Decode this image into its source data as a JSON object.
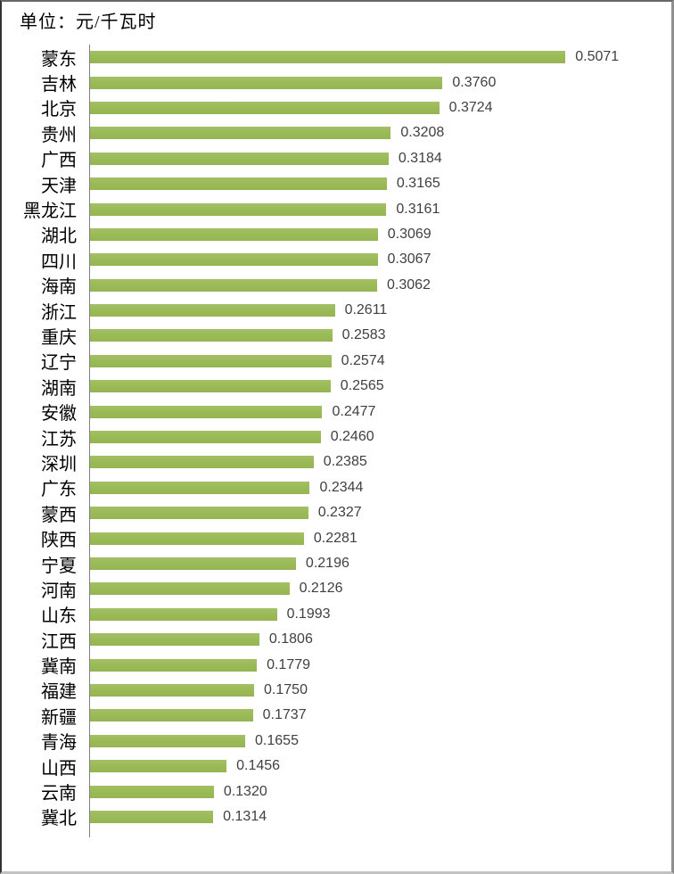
{
  "title": "单位：元/千瓦时",
  "chart_data": {
    "type": "bar",
    "orientation": "horizontal",
    "title": "单位：元/千瓦时",
    "categories": [
      "蒙东",
      "吉林",
      "北京",
      "贵州",
      "广西",
      "天津",
      "黑龙江",
      "湖北",
      "四川",
      "海南",
      "浙江",
      "重庆",
      "辽宁",
      "湖南",
      "安徽",
      "江苏",
      "深圳",
      "广东",
      "蒙西",
      "陕西",
      "宁夏",
      "河南",
      "山东",
      "江西",
      "冀南",
      "福建",
      "新疆",
      "青海",
      "山西",
      "云南",
      "冀北"
    ],
    "values": [
      0.5071,
      0.376,
      0.3724,
      0.3208,
      0.3184,
      0.3165,
      0.3161,
      0.3069,
      0.3067,
      0.3062,
      0.2611,
      0.2583,
      0.2574,
      0.2565,
      0.2477,
      0.246,
      0.2385,
      0.2344,
      0.2327,
      0.2281,
      0.2196,
      0.2126,
      0.1993,
      0.1806,
      0.1779,
      0.175,
      0.1737,
      0.1655,
      0.1456,
      0.132,
      0.1314
    ],
    "value_labels": [
      "0.5071",
      "0.3760",
      "0.3724",
      "0.3208",
      "0.3184",
      "0.3165",
      "0.3161",
      "0.3069",
      "0.3067",
      "0.3062",
      "0.2611",
      "0.2583",
      "0.2574",
      "0.2565",
      "0.2477",
      "0.2460",
      "0.2385",
      "0.2344",
      "0.2327",
      "0.2281",
      "0.2196",
      "0.2126",
      "0.1993",
      "0.1806",
      "0.1779",
      "0.1750",
      "0.1737",
      "0.1655",
      "0.1456",
      "0.1320",
      "0.1314"
    ],
    "xlabel": "",
    "ylabel": "",
    "xlim": [
      0,
      0.62
    ],
    "grid": false,
    "legend": false,
    "bar_color": "#9BBB59",
    "axis_color": "#808080",
    "value_text_color": "#404040"
  }
}
